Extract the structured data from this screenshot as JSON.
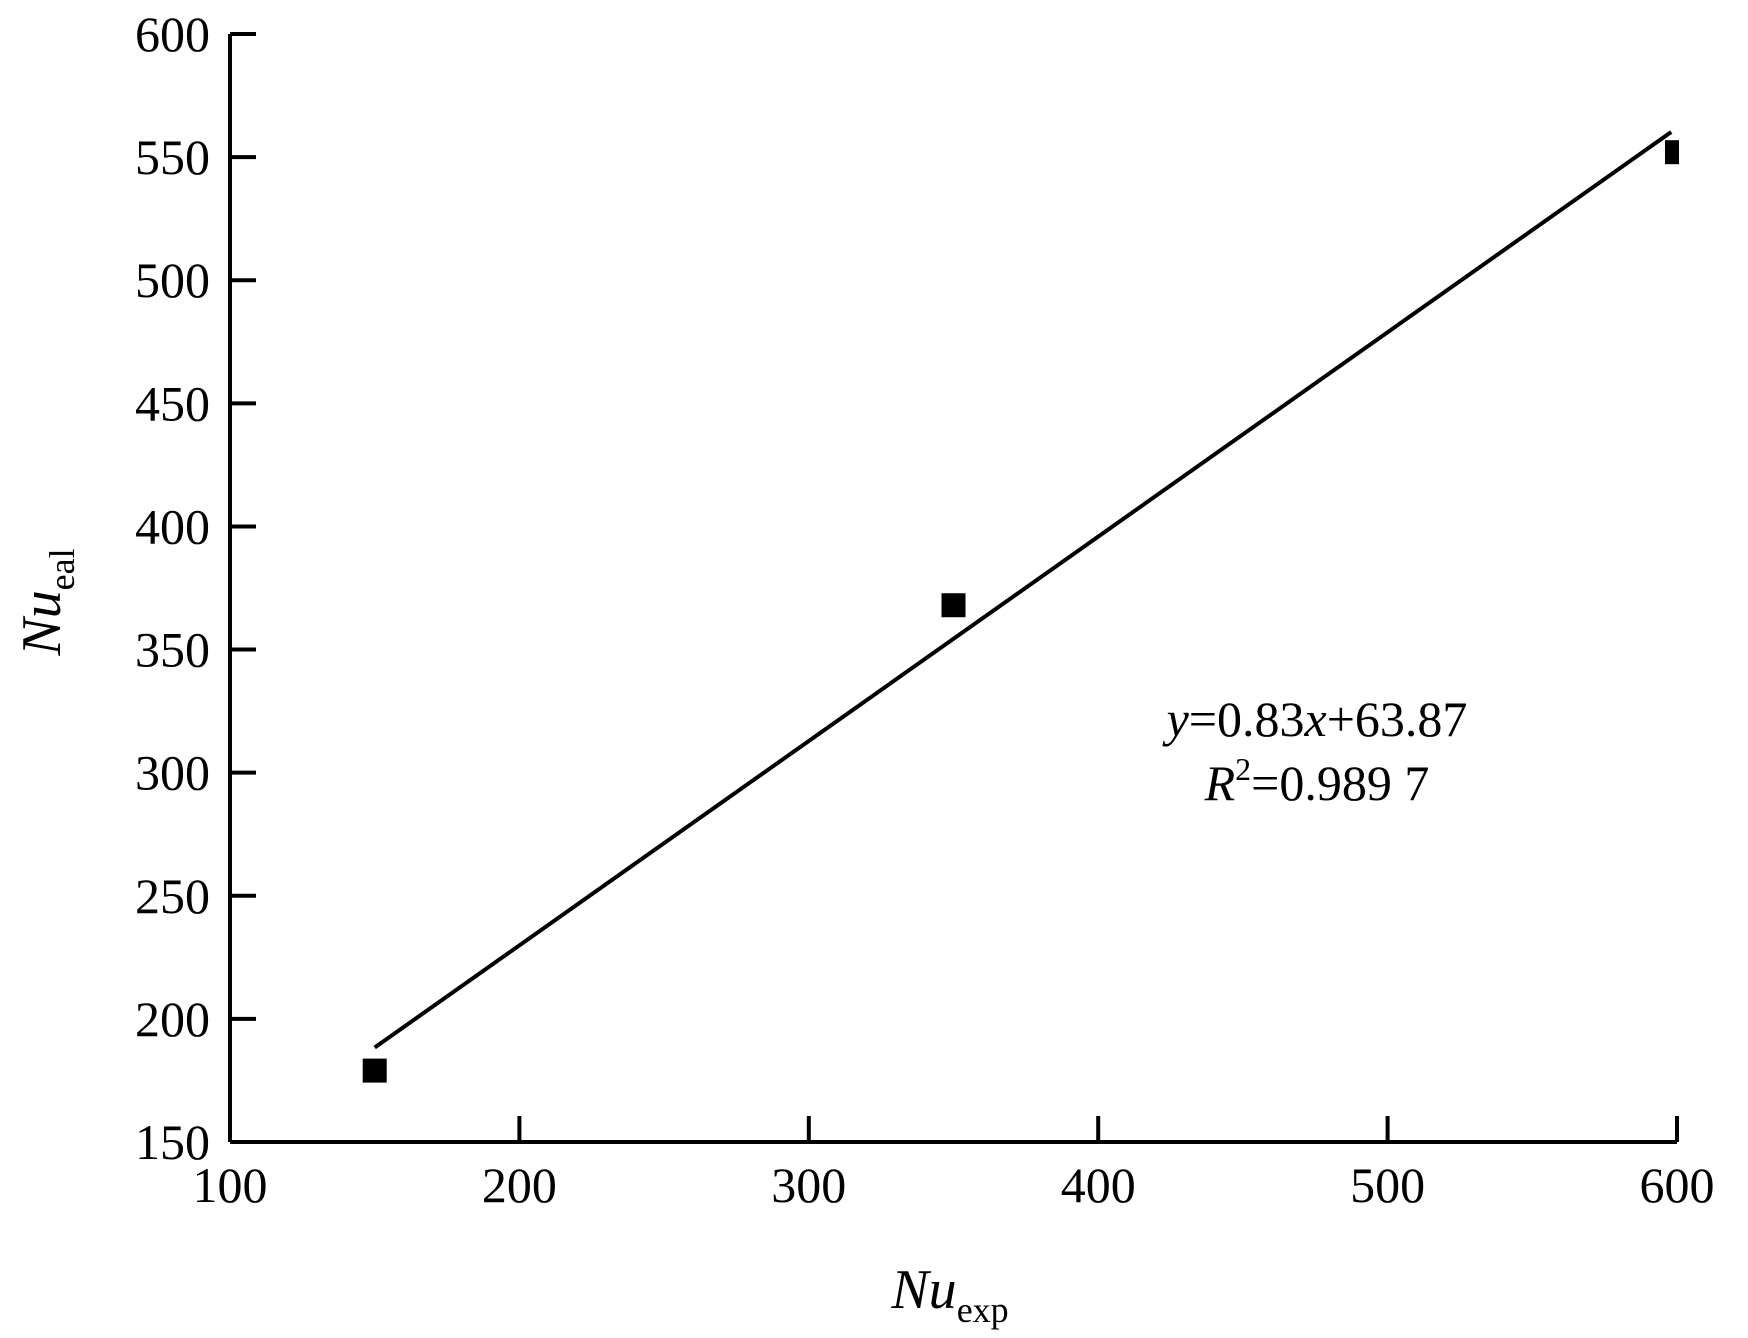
{
  "chart_data": {
    "type": "scatter",
    "title": "",
    "xlabel": {
      "main": "Nu",
      "sub": "exp"
    },
    "ylabel": {
      "main": "Nu",
      "sub": "eal"
    },
    "xlim": [
      100,
      600
    ],
    "ylim": [
      150,
      600
    ],
    "x_ticks": [
      100,
      200,
      300,
      400,
      500,
      600
    ],
    "y_ticks": [
      150,
      200,
      250,
      300,
      350,
      400,
      450,
      500,
      550,
      600
    ],
    "grid": false,
    "legend": "none",
    "series": [
      {
        "points": [
          {
            "x": 150,
            "y": 179
          },
          {
            "x": 350,
            "y": 368
          },
          {
            "x": 600,
            "y": 552
          }
        ]
      }
    ],
    "fit_line": {
      "slope": 0.83,
      "intercept": 63.87,
      "x_range": [
        150,
        598
      ]
    },
    "annotations": {
      "equation": {
        "y_var": "y",
        "mid": "=0.83",
        "x_var": "x",
        "rest": "+63.87"
      },
      "r_squared": {
        "var": "R",
        "exp": "2",
        "value": "=0.989 7"
      }
    },
    "colors": {
      "marks": "#000000",
      "background": "#ffffff"
    }
  }
}
